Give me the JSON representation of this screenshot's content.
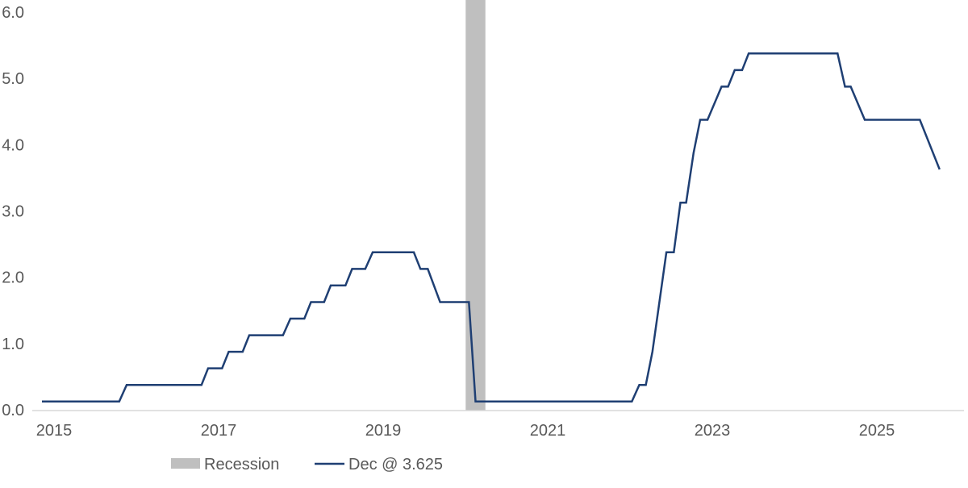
{
  "chart_data": {
    "type": "line",
    "title": "",
    "xlabel": "",
    "ylabel": "",
    "xlim": [
      2015,
      2026.4
    ],
    "ylim": [
      0,
      6
    ],
    "x_ticks": [
      "2015",
      "2017",
      "2019",
      "2021",
      "2023",
      "2025"
    ],
    "y_ticks": [
      "0.0",
      "1.0",
      "2.0",
      "3.0",
      "4.0",
      "5.0",
      "6.0"
    ],
    "grid": false,
    "legend_position": "bottom",
    "colors": {
      "line": "#1f3f73",
      "recession": "#bfbfbf",
      "axis": "#d9d9d9"
    },
    "recessions": [
      {
        "name": "Recession",
        "start": 2020.13,
        "end": 2020.37
      }
    ],
    "series": [
      {
        "name": "Dec @ 3.625",
        "points": [
          [
            2014.98,
            0.125
          ],
          [
            2015.92,
            0.125
          ],
          [
            2016.01,
            0.375
          ],
          [
            2016.92,
            0.375
          ],
          [
            2017.0,
            0.625
          ],
          [
            2017.17,
            0.625
          ],
          [
            2017.25,
            0.875
          ],
          [
            2017.42,
            0.875
          ],
          [
            2017.5,
            1.125
          ],
          [
            2017.91,
            1.125
          ],
          [
            2018.0,
            1.375
          ],
          [
            2018.17,
            1.375
          ],
          [
            2018.25,
            1.625
          ],
          [
            2018.41,
            1.625
          ],
          [
            2018.49,
            1.875
          ],
          [
            2018.67,
            1.875
          ],
          [
            2018.75,
            2.125
          ],
          [
            2018.91,
            2.125
          ],
          [
            2019.0,
            2.375
          ],
          [
            2019.5,
            2.375
          ],
          [
            2019.58,
            2.125
          ],
          [
            2019.67,
            2.125
          ],
          [
            2019.82,
            1.625
          ],
          [
            2020.17,
            1.625
          ],
          [
            2020.25,
            0.125
          ],
          [
            2022.15,
            0.125
          ],
          [
            2022.24,
            0.375
          ],
          [
            2022.32,
            0.375
          ],
          [
            2022.4,
            0.875
          ],
          [
            2022.57,
            2.375
          ],
          [
            2022.66,
            2.375
          ],
          [
            2022.74,
            3.125
          ],
          [
            2022.81,
            3.125
          ],
          [
            2022.9,
            3.875
          ],
          [
            2022.98,
            4.375
          ],
          [
            2023.07,
            4.375
          ],
          [
            2023.24,
            4.875
          ],
          [
            2023.32,
            4.875
          ],
          [
            2023.4,
            5.125
          ],
          [
            2023.49,
            5.125
          ],
          [
            2023.57,
            5.375
          ],
          [
            2024.65,
            5.375
          ],
          [
            2024.74,
            4.875
          ],
          [
            2024.81,
            4.875
          ],
          [
            2024.98,
            4.375
          ],
          [
            2025.65,
            4.375
          ],
          [
            2025.89,
            3.625
          ]
        ]
      }
    ]
  },
  "legend": {
    "recession_label": "Recession",
    "series_label": "Dec @ 3.625"
  }
}
